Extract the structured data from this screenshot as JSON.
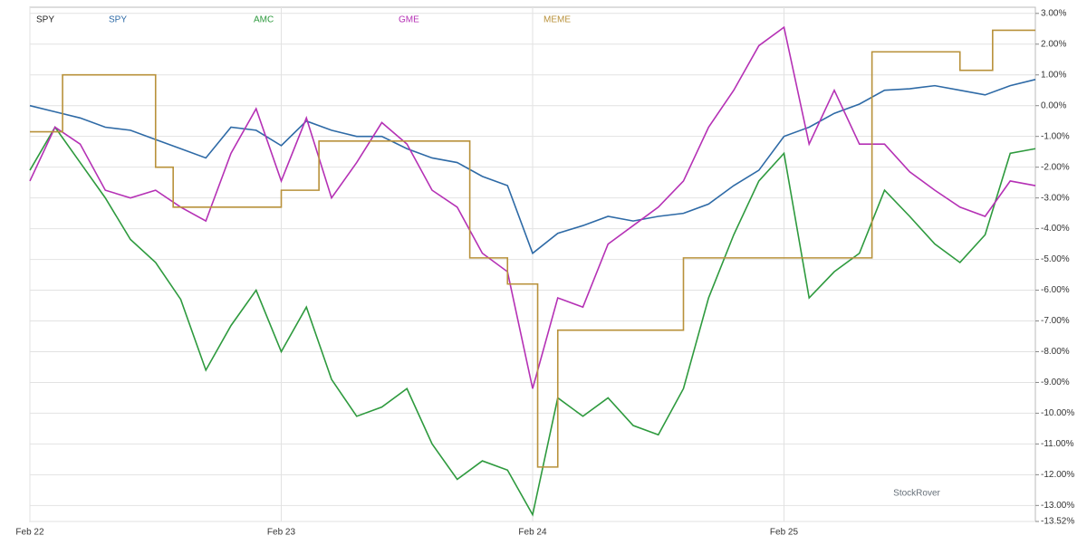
{
  "chart_data": {
    "type": "line",
    "title": "SPY",
    "x": [
      0,
      0.1,
      0.2,
      0.3,
      0.4,
      0.5,
      0.6,
      0.7,
      0.8,
      0.9,
      1.0,
      1.1,
      1.2,
      1.3,
      1.4,
      1.5,
      1.6,
      1.7,
      1.8,
      1.9,
      2.0,
      2.1,
      2.2,
      2.3,
      2.4,
      2.5,
      2.6,
      2.7,
      2.8,
      2.9,
      3.0,
      3.1,
      3.2,
      3.3,
      3.4,
      3.5,
      3.6,
      3.7,
      3.8,
      3.9,
      4.0
    ],
    "series": [
      {
        "name": "SPY",
        "color": "#2e6aa6",
        "values": [
          0,
          -0.2,
          -0.4,
          -0.7,
          -0.8,
          -1.1,
          -1.4,
          -1.7,
          -0.7,
          -0.8,
          -1.3,
          -0.5,
          -0.8,
          -1.0,
          -1.0,
          -1.4,
          -1.7,
          -1.85,
          -2.3,
          -2.6,
          -4.8,
          -4.15,
          -3.9,
          -3.6,
          -3.75,
          -3.6,
          -3.5,
          -3.2,
          -2.6,
          -2.1,
          -1.0,
          -0.7,
          -0.25,
          0.05,
          0.5,
          0.55,
          0.65,
          0.5,
          0.35,
          0.65,
          0.85
        ]
      },
      {
        "name": "AMC",
        "color": "#2e9a3e",
        "values": [
          -2.1,
          -0.7,
          -1.85,
          -3.0,
          -4.35,
          -5.1,
          -6.3,
          -8.6,
          -7.15,
          -6.0,
          -8.0,
          -6.55,
          -8.9,
          -10.1,
          -9.8,
          -9.2,
          -11.0,
          -12.15,
          -11.55,
          -11.85,
          -13.3,
          -9.5,
          -10.1,
          -9.5,
          -10.4,
          -10.7,
          -9.2,
          -6.25,
          -4.2,
          -2.45,
          -1.55,
          -6.25,
          -5.4,
          -4.8,
          -2.75,
          -3.6,
          -4.5,
          -5.1,
          -4.2,
          -1.55,
          -1.4
        ]
      },
      {
        "name": "GME",
        "color": "#b531b5",
        "values": [
          -2.45,
          -0.7,
          -1.25,
          -2.75,
          -3.0,
          -2.75,
          -3.3,
          -3.75,
          -1.55,
          -0.1,
          -2.45,
          -0.4,
          -3.0,
          -1.85,
          -0.55,
          -1.25,
          -2.75,
          -3.3,
          -4.8,
          -5.4,
          -9.2,
          -6.25,
          -6.55,
          -4.5,
          -3.9,
          -3.3,
          -2.45,
          -0.7,
          0.5,
          1.95,
          2.55,
          -1.25,
          0.5,
          -1.25,
          -1.25,
          -2.15,
          -2.75,
          -3.3,
          -3.6,
          -2.45,
          -2.6
        ]
      },
      {
        "name": "MEME",
        "color": "#b8913a",
        "step": true,
        "x": [
          0,
          0.13,
          0.5,
          0.57,
          1.0,
          1.15,
          1.75,
          1.9,
          2.02,
          2.1,
          2.6,
          3.35,
          3.7,
          3.83,
          4.0
        ],
        "values": [
          -0.85,
          1.0,
          -2.0,
          -3.3,
          -2.75,
          -1.15,
          -4.95,
          -5.8,
          -11.75,
          -7.3,
          -4.95,
          1.75,
          1.15,
          2.45,
          2.45
        ]
      }
    ],
    "xlim": [
      0,
      4
    ],
    "xticks": [
      {
        "value": 0,
        "label": "Feb 22"
      },
      {
        "value": 1,
        "label": "Feb 23"
      },
      {
        "value": 2,
        "label": "Feb 24"
      },
      {
        "value": 3,
        "label": "Feb 25"
      }
    ],
    "ylim": [
      -13.52,
      3.2
    ],
    "yticks": [
      {
        "value": 3,
        "label": "3.00%"
      },
      {
        "value": 2,
        "label": "2.00%"
      },
      {
        "value": 1,
        "label": "1.00%"
      },
      {
        "value": 0,
        "label": "0.00%"
      },
      {
        "value": -1,
        "label": "-1.00%"
      },
      {
        "value": -2,
        "label": "-2.00%"
      },
      {
        "value": -3,
        "label": "-3.00%"
      },
      {
        "value": -4,
        "label": "-4.00%"
      },
      {
        "value": -5,
        "label": "-5.00%"
      },
      {
        "value": -6,
        "label": "-6.00%"
      },
      {
        "value": -7,
        "label": "-7.00%"
      },
      {
        "value": -8,
        "label": "-8.00%"
      },
      {
        "value": -9,
        "label": "-9.00%"
      },
      {
        "value": -10,
        "label": "-10.00%"
      },
      {
        "value": -11,
        "label": "-11.00%"
      },
      {
        "value": -12,
        "label": "-12.00%"
      },
      {
        "value": -13,
        "label": "-13.00%"
      },
      {
        "value": -13.52,
        "label": "-13.52%"
      }
    ],
    "grid": true,
    "watermark": "StockRover"
  }
}
